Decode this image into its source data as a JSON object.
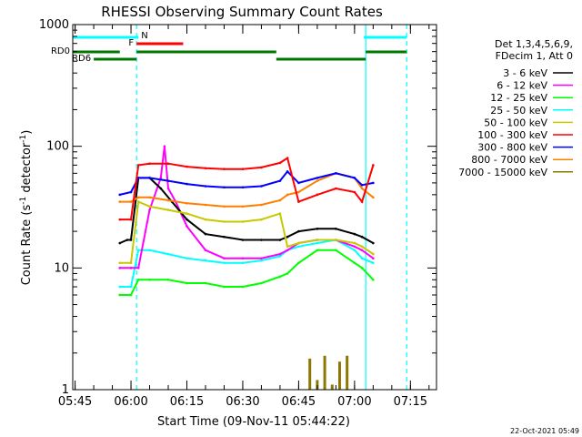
{
  "chart_data": {
    "type": "line",
    "title": "RHESSI Observing Summary Count Rates",
    "xlabel": "Start Time (09-Nov-11 05:44:22)",
    "ylabel_main": "Count Rate (s",
    "ylabel_sup1": "-1",
    "ylabel_mid": " detector",
    "ylabel_sup2": "-1",
    "ylabel_end": ")",
    "yscale": "log",
    "ylim": [
      1,
      1000
    ],
    "xlim": [
      "05:44:22",
      "07:22:00"
    ],
    "x_ticks": [
      "05:45",
      "06:00",
      "06:15",
      "06:30",
      "06:45",
      "07:00",
      "07:15"
    ],
    "y_ticks": [
      "1",
      "10",
      "100",
      "1000"
    ],
    "legend_header": [
      "Det 1,3,4,5,6,9,",
      "FDecim 1, Att 0"
    ],
    "legend_position": "top-right",
    "timestamp": "22-Oct-2021 05:49",
    "series": [
      {
        "name": "3 - 6 keV",
        "color": "#000000",
        "x": [
          "05:57",
          "05:59",
          "06:00",
          "06:02",
          "06:05",
          "06:08",
          "06:11",
          "06:15",
          "06:20",
          "06:25",
          "06:30",
          "06:35",
          "06:40",
          "06:42",
          "06:45",
          "06:50",
          "06:55",
          "07:00",
          "07:02",
          "07:05"
        ],
        "values": [
          16,
          17,
          17,
          55,
          55,
          45,
          35,
          25,
          19,
          18,
          17,
          17,
          17,
          18,
          20,
          21,
          21,
          19,
          18,
          16
        ]
      },
      {
        "name": "6 - 12 keV",
        "color": "#ff00ff",
        "x": [
          "05:57",
          "06:00",
          "06:02",
          "06:05",
          "06:08",
          "06:09",
          "06:10",
          "06:12",
          "06:15",
          "06:20",
          "06:25",
          "06:30",
          "06:35",
          "06:40",
          "06:42",
          "06:45",
          "06:50",
          "06:55",
          "07:00",
          "07:02",
          "07:05"
        ],
        "values": [
          10,
          10,
          10,
          30,
          55,
          100,
          45,
          35,
          22,
          14,
          12,
          12,
          12,
          13,
          14,
          16,
          17,
          17,
          15,
          14,
          12
        ]
      },
      {
        "name": "12 - 25 keV",
        "color": "#00ff00",
        "x": [
          "05:57",
          "06:00",
          "06:02",
          "06:05",
          "06:10",
          "06:15",
          "06:20",
          "06:25",
          "06:30",
          "06:35",
          "06:40",
          "06:42",
          "06:45",
          "06:50",
          "06:55",
          "07:00",
          "07:02",
          "07:05"
        ],
        "values": [
          6,
          6,
          8,
          8,
          8,
          7.5,
          7.5,
          7,
          7,
          7.5,
          8.5,
          9,
          11,
          14,
          14,
          11,
          10,
          8
        ]
      },
      {
        "name": "25 - 50 keV",
        "color": "#00ffff",
        "x": [
          "05:57",
          "06:00",
          "06:02",
          "06:05",
          "06:10",
          "06:15",
          "06:20",
          "06:25",
          "06:30",
          "06:35",
          "06:40",
          "06:42",
          "06:45",
          "06:50",
          "06:55",
          "07:00",
          "07:02",
          "07:05"
        ],
        "values": [
          7,
          7,
          14,
          14,
          13,
          12,
          11.5,
          11,
          11,
          11.5,
          12.5,
          14,
          15,
          16,
          17,
          14,
          12,
          11
        ]
      },
      {
        "name": "50 - 100 keV",
        "color": "#c8c800",
        "x": [
          "05:57",
          "06:00",
          "06:02",
          "06:05",
          "06:10",
          "06:15",
          "06:20",
          "06:25",
          "06:30",
          "06:35",
          "06:40",
          "06:42",
          "06:45",
          "06:50",
          "06:55",
          "07:00",
          "07:02",
          "07:05"
        ],
        "values": [
          11,
          11,
          35,
          32,
          30,
          28,
          25,
          24,
          24,
          25,
          28,
          15,
          16,
          17,
          17,
          16,
          15,
          13
        ]
      },
      {
        "name": "100 - 300 keV",
        "color": "#ff0000",
        "x": [
          "05:57",
          "06:00",
          "06:02",
          "06:05",
          "06:10",
          "06:15",
          "06:20",
          "06:25",
          "06:30",
          "06:35",
          "06:40",
          "06:42",
          "06:45",
          "06:50",
          "06:55",
          "07:00",
          "07:02",
          "07:05"
        ],
        "values": [
          25,
          25,
          70,
          72,
          72,
          68,
          66,
          65,
          65,
          67,
          73,
          80,
          35,
          40,
          45,
          42,
          35,
          70
        ]
      },
      {
        "name": "300 - 800 keV",
        "color": "#0000ff",
        "x": [
          "05:57",
          "06:00",
          "06:02",
          "06:05",
          "06:10",
          "06:15",
          "06:20",
          "06:25",
          "06:30",
          "06:35",
          "06:40",
          "06:42",
          "06:45",
          "06:50",
          "06:55",
          "07:00",
          "07:02",
          "07:05"
        ],
        "values": [
          40,
          42,
          55,
          55,
          52,
          49,
          47,
          46,
          46,
          47,
          52,
          62,
          50,
          55,
          60,
          55,
          48,
          50
        ]
      },
      {
        "name": "800 - 7000 keV",
        "color": "#ff8000",
        "x": [
          "05:57",
          "06:00",
          "06:02",
          "06:05",
          "06:10",
          "06:15",
          "06:20",
          "06:25",
          "06:30",
          "06:35",
          "06:40",
          "06:42",
          "06:45",
          "06:50",
          "06:55",
          "07:00",
          "07:02",
          "07:05"
        ],
        "values": [
          35,
          35,
          38,
          38,
          36,
          34,
          33,
          32,
          32,
          33,
          36,
          40,
          42,
          52,
          60,
          55,
          45,
          38
        ]
      },
      {
        "name": "7000 - 15000 keV",
        "color": "#8c7800",
        "x": [
          "06:47",
          "06:48",
          "06:50",
          "06:52",
          "06:54",
          "06:56",
          "06:58",
          "07:00"
        ],
        "values": [
          1.0,
          1.8,
          1.2,
          1.9,
          1.1,
          1.7,
          1.9,
          1.0
        ]
      }
    ],
    "flag_bars": [
      {
        "label": "",
        "color": "#00ffff",
        "level": 0,
        "ranges": [
          [
            "05:44:22",
            "06:01:30"
          ],
          [
            "07:02:30",
            "07:14:00"
          ]
        ]
      },
      {
        "label": "N",
        "color": "#00ffff",
        "level": 0,
        "ranges": [
          [
            "06:01:30",
            "06:02:00"
          ]
        ]
      },
      {
        "label": "F",
        "color": "#ff0000",
        "level": 1,
        "ranges": [
          [
            "06:01:30",
            "06:14:00"
          ]
        ]
      },
      {
        "label": "RD0",
        "color": "#007800",
        "level": 2,
        "ranges": [
          [
            "05:44:22",
            "05:57:00"
          ],
          [
            "06:01:30",
            "06:39:00"
          ],
          [
            "07:03:00",
            "07:14:00"
          ]
        ]
      },
      {
        "label": "RD6",
        "color": "#007800",
        "level": 3,
        "ranges": [
          [
            "05:50:00",
            "06:01:30"
          ],
          [
            "06:39:00",
            "07:03:00"
          ]
        ]
      }
    ],
    "vlines": [
      {
        "x": "06:01:30",
        "color": "#00ffff",
        "dash": true
      },
      {
        "x": "07:03:00",
        "color": "#00ffff",
        "dash": false
      },
      {
        "x": "07:14:00",
        "color": "#00ffff",
        "dash": true
      }
    ]
  }
}
